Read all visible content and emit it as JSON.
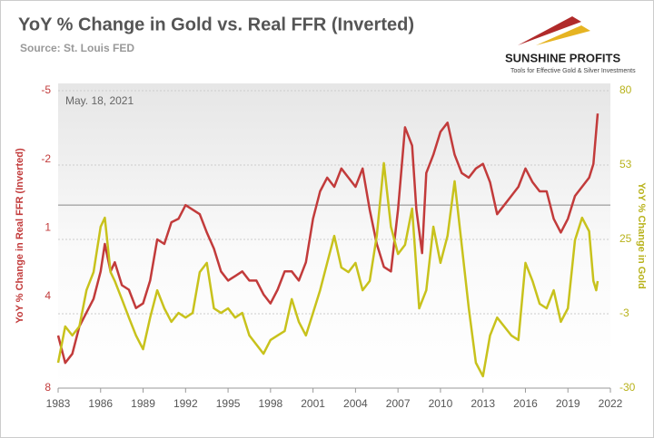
{
  "chart_data": {
    "type": "line",
    "title": "YoY % Change in Gold vs. Real FFR (Inverted)",
    "subtitle": "Source: St. Louis FED",
    "annotation": "May. 18, 2021",
    "brand": "SUNSHINE PROFITS",
    "tagline": "Tools for Effective Gold & Silver Investments",
    "y_label": "YoY % Change in Real FFR (Inverted)",
    "y2_label": "YoY % Change in Gold",
    "xlim": [
      1983,
      2022
    ],
    "xticks": [
      1983,
      1986,
      1989,
      1992,
      1995,
      1998,
      2001,
      2004,
      2007,
      2010,
      2013,
      2016,
      2019,
      2022
    ],
    "ylim": [
      -5,
      8
    ],
    "yticks": [
      -5,
      -2,
      1,
      4,
      8
    ],
    "y_inverted": true,
    "zero_line": true,
    "y2lim": [
      -30,
      80
    ],
    "y2ticks": [
      -30,
      {
        "value": -2.5,
        "label": "-3"
      },
      25,
      {
        "value": 52.5,
        "label": "53"
      },
      80
    ],
    "grid": true,
    "series": [
      {
        "name": "Real FFR (Inverted)",
        "color": "#c23b3b",
        "axis": "y",
        "x": [
          1983,
          1983.5,
          1984,
          1984.5,
          1985,
          1985.5,
          1986,
          1986.3,
          1986.7,
          1987,
          1987.5,
          1988,
          1988.5,
          1989,
          1989.5,
          1990,
          1990.5,
          1991,
          1991.5,
          1992,
          1992.5,
          1993,
          1993.5,
          1994,
          1994.5,
          1995,
          1995.5,
          1996,
          1996.5,
          1997,
          1997.5,
          1998,
          1998.5,
          1999,
          1999.5,
          2000,
          2000.5,
          2001,
          2001.5,
          2002,
          2002.5,
          2003,
          2003.5,
          2004,
          2004.5,
          2005,
          2005.5,
          2006,
          2006.5,
          2007,
          2007.5,
          2008,
          2008.3,
          2008.7,
          2009,
          2009.5,
          2010,
          2010.5,
          2011,
          2011.5,
          2012,
          2012.5,
          2013,
          2013.5,
          2014,
          2014.5,
          2015,
          2015.5,
          2016,
          2016.5,
          2017,
          2017.5,
          2018,
          2018.5,
          2019,
          2019.5,
          2020,
          2020.5,
          2020.8,
          2021.1
        ],
        "values": [
          5.7,
          6.9,
          6.5,
          5.3,
          4.7,
          4.1,
          2.9,
          1.7,
          2.9,
          2.5,
          3.5,
          3.7,
          4.5,
          4.3,
          3.3,
          1.5,
          1.7,
          0.75,
          0.6,
          0,
          0.2,
          0.4,
          1.2,
          1.9,
          2.9,
          3.3,
          3.1,
          2.9,
          3.3,
          3.3,
          3.9,
          4.3,
          3.7,
          2.9,
          2.9,
          3.3,
          2.5,
          0.6,
          -0.6,
          -1.2,
          -0.8,
          -1.6,
          -1.2,
          -0.8,
          -1.6,
          0.2,
          1.7,
          2.7,
          2.9,
          0.2,
          -3.4,
          -2.6,
          0.2,
          2.1,
          -1.4,
          -2.2,
          -3.2,
          -3.6,
          -2.2,
          -1.4,
          -1.2,
          -1.6,
          -1.8,
          -1.0,
          0.4,
          0,
          -0.4,
          -0.8,
          -1.6,
          -1.0,
          -0.6,
          -0.6,
          0.6,
          1.2,
          0.6,
          -0.4,
          -0.8,
          -1.2,
          -1.8,
          -4.0
        ]
      },
      {
        "name": "Gold YoY",
        "color": "#c8c21c",
        "axis": "y2",
        "x": [
          1983,
          1983.5,
          1984,
          1984.5,
          1985,
          1985.5,
          1986,
          1986.3,
          1986.7,
          1987,
          1987.5,
          1988,
          1988.5,
          1989,
          1989.5,
          1990,
          1990.5,
          1991,
          1991.5,
          1992,
          1992.5,
          1993,
          1993.5,
          1994,
          1994.5,
          1995,
          1995.5,
          1996,
          1996.5,
          1997,
          1997.5,
          1998,
          1998.5,
          1999,
          1999.5,
          2000,
          2000.5,
          2001,
          2001.5,
          2002,
          2002.5,
          2003,
          2003.5,
          2004,
          2004.5,
          2005,
          2005.5,
          2006,
          2006.5,
          2007,
          2007.5,
          2008,
          2008.5,
          2009,
          2009.5,
          2010,
          2010.5,
          2011,
          2011.5,
          2012,
          2012.5,
          2013,
          2013.5,
          2014,
          2014.5,
          2015,
          2015.5,
          2016,
          2016.5,
          2017,
          2017.5,
          2018,
          2018.5,
          2019,
          2019.5,
          2020,
          2020.5,
          2020.8,
          2021.0,
          2021.1
        ],
        "values": [
          -20.6,
          -7.2,
          -10.5,
          -7.2,
          6.2,
          12.9,
          29.7,
          33,
          12.9,
          9.6,
          2.9,
          -3.9,
          -10.5,
          -15.6,
          -3.9,
          6.2,
          -0.5,
          -5.5,
          -2.2,
          -3.9,
          -2.2,
          12.9,
          16.3,
          -0.5,
          -2.2,
          -0.5,
          -3.9,
          -2.2,
          -10.5,
          -13.9,
          -17.3,
          -12.2,
          -10.5,
          -8.9,
          2.9,
          -5.5,
          -10.5,
          -2.2,
          6.2,
          16.3,
          26.3,
          14.6,
          12.9,
          16.3,
          6.2,
          9.6,
          26.3,
          53.2,
          29.7,
          19.6,
          23,
          36.4,
          -0.5,
          6.2,
          29.7,
          16.3,
          26.3,
          46.5,
          23,
          -0.5,
          -20.6,
          -25.6,
          -10.5,
          -3.9,
          -7.2,
          -10.5,
          -12.2,
          16.3,
          9.6,
          1.2,
          -0.5,
          6.2,
          -5.5,
          -0.5,
          24.7,
          33,
          28,
          9.6,
          6.2,
          9.6
        ]
      }
    ]
  }
}
